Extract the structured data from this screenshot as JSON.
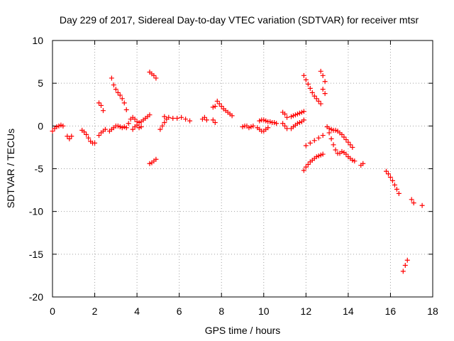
{
  "chart_data": {
    "type": "scatter",
    "title": "Day 229 of 2017, Sidereal Day-to-day VTEC variation (SDTVAR) for receiver mtsr",
    "xlabel": "GPS time / hours",
    "ylabel": "SDTVAR / TECUs",
    "xlim": [
      0,
      18
    ],
    "ylim": [
      -20,
      10
    ],
    "xticks": [
      0,
      2,
      4,
      6,
      8,
      10,
      12,
      14,
      16,
      18
    ],
    "yticks": [
      -20,
      -15,
      -10,
      -5,
      0,
      5,
      10
    ],
    "grid": true,
    "marker": "+",
    "color": "#ff0000",
    "segments": [
      {
        "x": [
          0.0,
          0.1,
          0.2,
          0.3,
          0.4,
          0.5
        ],
        "y": [
          -0.6,
          -0.3,
          -0.1,
          0.0,
          0.1,
          0.0
        ]
      },
      {
        "x": [
          0.7,
          0.8,
          0.9
        ],
        "y": [
          -1.2,
          -1.5,
          -1.2
        ]
      },
      {
        "x": [
          1.4,
          1.5,
          1.6,
          1.7,
          1.8,
          1.9,
          2.0
        ],
        "y": [
          -0.5,
          -0.7,
          -1.0,
          -1.4,
          -1.8,
          -2.0,
          -2.0
        ]
      },
      {
        "x": [
          2.2,
          2.3,
          2.4,
          2.5
        ],
        "y": [
          -1.1,
          -0.8,
          -0.6,
          -0.4
        ]
      },
      {
        "x": [
          2.2,
          2.3,
          2.4
        ],
        "y": [
          2.7,
          2.4,
          1.8
        ]
      },
      {
        "x": [
          2.7,
          2.8,
          2.9,
          3.0,
          3.1,
          3.2,
          3.3,
          3.4
        ],
        "y": [
          -0.6,
          -0.4,
          -0.2,
          0.0,
          0.0,
          -0.1,
          -0.2,
          -0.1
        ]
      },
      {
        "x": [
          2.8,
          2.9,
          3.0,
          3.1,
          3.2,
          3.3,
          3.4,
          3.5
        ],
        "y": [
          5.6,
          4.8,
          4.3,
          3.9,
          3.6,
          3.2,
          2.7,
          1.9
        ]
      },
      {
        "x": [
          3.5,
          3.6,
          3.7,
          3.8,
          3.9,
          4.0,
          4.1,
          4.2,
          4.3,
          4.4,
          4.5,
          4.6
        ],
        "y": [
          -0.2,
          0.3,
          0.8,
          1.0,
          0.8,
          0.5,
          0.4,
          0.5,
          0.7,
          0.9,
          1.1,
          1.3
        ]
      },
      {
        "x": [
          3.8,
          3.9,
          4.0,
          4.1,
          4.2
        ],
        "y": [
          -0.4,
          -0.1,
          0.1,
          -0.2,
          -0.1
        ]
      },
      {
        "x": [
          4.6,
          4.7,
          4.8,
          4.9
        ],
        "y": [
          6.3,
          6.1,
          5.9,
          5.6
        ]
      },
      {
        "x": [
          4.6,
          4.7,
          4.8,
          4.9
        ],
        "y": [
          -4.4,
          -4.3,
          -4.1,
          -3.9
        ]
      },
      {
        "x": [
          5.1,
          5.2,
          5.3,
          5.4
        ],
        "y": [
          -0.4,
          0.0,
          0.4,
          0.8
        ]
      },
      {
        "x": [
          5.3,
          5.5,
          5.7,
          5.9,
          6.1,
          6.3,
          6.5
        ],
        "y": [
          1.1,
          1.0,
          0.9,
          0.9,
          1.0,
          0.8,
          0.6
        ]
      },
      {
        "x": [
          7.1,
          7.2,
          7.3
        ],
        "y": [
          0.8,
          1.0,
          0.7
        ]
      },
      {
        "x": [
          7.6,
          7.7
        ],
        "y": [
          2.2,
          2.3
        ]
      },
      {
        "x": [
          7.8,
          7.9,
          8.0,
          8.1,
          8.2,
          8.3,
          8.4,
          8.5
        ],
        "y": [
          2.9,
          2.6,
          2.3,
          2.0,
          1.8,
          1.6,
          1.4,
          1.2
        ]
      },
      {
        "x": [
          7.6,
          7.7
        ],
        "y": [
          0.7,
          0.4
        ]
      },
      {
        "x": [
          9.0,
          9.1,
          9.2,
          9.3,
          9.4,
          9.5
        ],
        "y": [
          -0.1,
          0.0,
          0.0,
          -0.2,
          -0.1,
          0.0
        ]
      },
      {
        "x": [
          9.8,
          9.9,
          10.0,
          10.1,
          10.2,
          10.3,
          10.4,
          10.5,
          10.6
        ],
        "y": [
          0.6,
          0.7,
          0.7,
          0.6,
          0.5,
          0.5,
          0.4,
          0.4,
          0.3
        ]
      },
      {
        "x": [
          9.7,
          9.8,
          9.9,
          10.0,
          10.1,
          10.2
        ],
        "y": [
          -0.2,
          -0.4,
          -0.6,
          -0.6,
          -0.4,
          -0.2
        ]
      },
      {
        "x": [
          10.9,
          11.0,
          11.1
        ],
        "y": [
          1.6,
          1.4,
          1.0
        ]
      },
      {
        "x": [
          10.9,
          11.0,
          11.1
        ],
        "y": [
          0.3,
          0.0,
          -0.3
        ]
      },
      {
        "x": [
          11.3,
          11.4,
          11.5,
          11.6,
          11.7,
          11.8,
          11.9
        ],
        "y": [
          1.1,
          1.2,
          1.3,
          1.4,
          1.5,
          1.6,
          1.7
        ]
      },
      {
        "x": [
          11.3,
          11.4,
          11.5,
          11.6,
          11.7,
          11.8,
          11.9
        ],
        "y": [
          -0.3,
          -0.1,
          0.1,
          0.3,
          0.4,
          0.5,
          0.7
        ]
      },
      {
        "x": [
          11.9,
          12.0,
          12.1,
          12.2,
          12.3,
          12.4,
          12.5,
          12.6,
          12.7
        ],
        "y": [
          5.9,
          5.4,
          4.9,
          4.4,
          3.9,
          3.5,
          3.2,
          2.9,
          2.6
        ]
      },
      {
        "x": [
          12.7,
          12.8,
          12.9
        ],
        "y": [
          6.4,
          5.9,
          5.2
        ]
      },
      {
        "x": [
          12.8,
          12.9
        ],
        "y": [
          4.3,
          3.8
        ]
      },
      {
        "x": [
          12.0,
          12.2,
          12.4,
          12.6,
          12.8
        ],
        "y": [
          -2.3,
          -2.0,
          -1.7,
          -1.4,
          -1.1
        ]
      },
      {
        "x": [
          11.9,
          12.0,
          12.1,
          12.2,
          12.3,
          12.4,
          12.5,
          12.6,
          12.7,
          12.8
        ],
        "y": [
          -5.2,
          -4.8,
          -4.5,
          -4.2,
          -4.0,
          -3.8,
          -3.6,
          -3.5,
          -3.4,
          -3.3
        ]
      },
      {
        "x": [
          13.0,
          13.1,
          13.2,
          13.3,
          13.4,
          13.5,
          13.6,
          13.7,
          13.8,
          13.9,
          14.0,
          14.1,
          14.2
        ],
        "y": [
          -0.1,
          -0.3,
          -0.4,
          -0.5,
          -0.5,
          -0.6,
          -0.8,
          -1.0,
          -1.3,
          -1.6,
          -1.9,
          -2.2,
          -2.5
        ]
      },
      {
        "x": [
          13.1,
          13.2,
          13.3,
          13.4,
          13.5,
          13.6,
          13.7,
          13.8,
          13.9,
          14.0,
          14.1,
          14.2,
          14.3
        ],
        "y": [
          -0.8,
          -1.5,
          -2.2,
          -2.8,
          -3.2,
          -3.2,
          -3.0,
          -3.1,
          -3.3,
          -3.6,
          -3.8,
          -4.0,
          -4.1
        ]
      },
      {
        "x": [
          14.6,
          14.7
        ],
        "y": [
          -4.6,
          -4.4
        ]
      },
      {
        "x": [
          15.8,
          15.9,
          16.0,
          16.1,
          16.2,
          16.3,
          16.4
        ],
        "y": [
          -5.3,
          -5.6,
          -6.0,
          -6.4,
          -6.9,
          -7.4,
          -7.9
        ]
      },
      {
        "x": [
          17.0,
          17.1,
          17.5
        ],
        "y": [
          -8.6,
          -9.0,
          -9.3
        ]
      },
      {
        "x": [
          16.6,
          16.7,
          16.8
        ],
        "y": [
          -17.0,
          -16.3,
          -15.7
        ]
      }
    ]
  }
}
